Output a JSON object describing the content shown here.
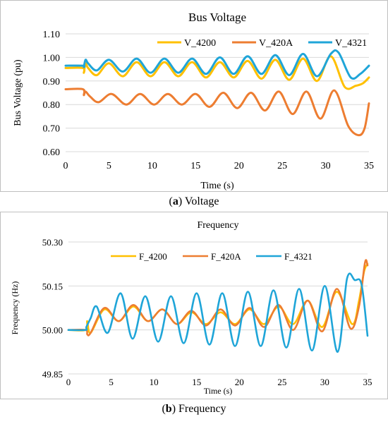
{
  "captions": [
    {
      "letter": "a",
      "text": "Voltage"
    },
    {
      "letter": "b",
      "text": "Frequency"
    }
  ],
  "chart_data": [
    {
      "type": "line",
      "title": "Bus Voltage",
      "xlabel": "Time (s)",
      "ylabel": "Bus Voltage (pu)",
      "xlim": [
        0,
        35
      ],
      "ylim": [
        0.6,
        1.1
      ],
      "xticks": [
        "0",
        "5",
        "10",
        "15",
        "20",
        "25",
        "30",
        "35"
      ],
      "yticks": [
        "0.60",
        "0.70",
        "0.80",
        "0.90",
        "1.00",
        "1.10"
      ],
      "grid": "horizontal",
      "legend_position": "top-right",
      "series": [
        {
          "name": "V_4200",
          "color": "#FFC000",
          "x": [
            0,
            2,
            2.1,
            2.3,
            2.6,
            3.6,
            5.0,
            6.6,
            8.2,
            9.8,
            11.4,
            13.0,
            14.6,
            16.2,
            17.8,
            19.4,
            21.0,
            22.6,
            24.2,
            25.8,
            27.4,
            29.0,
            30.6,
            32.2,
            33.5,
            34.3,
            35
          ],
          "y": [
            0.955,
            0.955,
            0.935,
            0.975,
            0.955,
            0.925,
            0.975,
            0.92,
            0.98,
            0.92,
            0.98,
            0.92,
            0.98,
            0.915,
            0.98,
            0.915,
            0.985,
            0.91,
            0.99,
            0.905,
            0.995,
            0.9,
            1.005,
            0.875,
            0.88,
            0.89,
            0.915
          ]
        },
        {
          "name": "V_420A",
          "color": "#ED7D31",
          "x": [
            0,
            2,
            2.1,
            2.3,
            2.8,
            3.8,
            5.3,
            7.0,
            8.6,
            10.2,
            11.8,
            13.4,
            15.0,
            16.6,
            18.2,
            19.8,
            21.4,
            23.0,
            24.6,
            26.2,
            27.8,
            29.4,
            31.0,
            32.6,
            33.8,
            34.5,
            35
          ],
          "y": [
            0.865,
            0.865,
            0.84,
            0.855,
            0.835,
            0.81,
            0.845,
            0.8,
            0.845,
            0.8,
            0.845,
            0.8,
            0.845,
            0.79,
            0.85,
            0.785,
            0.85,
            0.775,
            0.855,
            0.76,
            0.855,
            0.74,
            0.86,
            0.71,
            0.67,
            0.7,
            0.805
          ]
        },
        {
          "name": "V_4321",
          "color": "#1FA5D8",
          "x": [
            0,
            2,
            2.1,
            2.3,
            2.6,
            3.6,
            5.0,
            6.6,
            8.2,
            9.8,
            11.4,
            13.0,
            14.6,
            16.2,
            17.8,
            19.4,
            21.0,
            22.6,
            24.2,
            25.8,
            27.4,
            29.0,
            30.6,
            31.5,
            32.9,
            34.0,
            35
          ],
          "y": [
            0.965,
            0.965,
            0.96,
            0.99,
            0.975,
            0.945,
            0.99,
            0.94,
            0.995,
            0.935,
            0.995,
            0.935,
            0.995,
            0.93,
            1.0,
            0.93,
            1.005,
            0.93,
            1.01,
            0.925,
            1.015,
            0.92,
            1.015,
            1.02,
            0.915,
            0.93,
            0.965
          ]
        }
      ]
    },
    {
      "type": "line",
      "title": "Frequency",
      "xlabel": "Time (s)",
      "ylabel": "Frequency (Hz)",
      "xlim": [
        0,
        35
      ],
      "ylim": [
        49.85,
        50.3
      ],
      "xticks": [
        "0",
        "5",
        "10",
        "15",
        "20",
        "25",
        "30",
        "35"
      ],
      "yticks": [
        "49.85",
        "50.00",
        "50.15",
        "50.30"
      ],
      "grid": "horizontal",
      "legend_position": "top",
      "series": [
        {
          "name": "F_4200",
          "color": "#FFC000",
          "x": [
            0,
            2,
            2.2,
            2.6,
            4.2,
            5.9,
            7.6,
            9.3,
            11.0,
            12.7,
            14.4,
            16.1,
            17.8,
            19.5,
            21.2,
            22.9,
            24.6,
            26.3,
            28.0,
            29.7,
            31.4,
            33.2,
            34.0,
            34.6,
            35
          ],
          "y": [
            50.0,
            50.0,
            50.03,
            49.99,
            50.07,
            50.03,
            50.08,
            50.03,
            50.07,
            50.02,
            50.06,
            50.02,
            50.06,
            50.02,
            50.07,
            50.02,
            50.08,
            50.02,
            50.1,
            50.01,
            50.13,
            50.02,
            50.1,
            50.2,
            50.225
          ]
        },
        {
          "name": "F_420A",
          "color": "#ED7D31",
          "x": [
            0,
            2,
            2.2,
            2.6,
            4.2,
            5.9,
            7.6,
            9.3,
            11.0,
            12.7,
            14.4,
            16.1,
            17.8,
            19.5,
            21.2,
            22.9,
            24.6,
            26.3,
            28.0,
            29.7,
            31.4,
            33.0,
            34.0,
            34.7,
            35
          ],
          "y": [
            50.0,
            50.0,
            49.985,
            49.99,
            50.075,
            50.03,
            50.085,
            50.03,
            50.07,
            50.02,
            50.065,
            50.015,
            50.07,
            50.015,
            50.075,
            50.01,
            50.085,
            50.0,
            50.1,
            49.995,
            50.14,
            50.005,
            50.08,
            50.23,
            50.22
          ]
        },
        {
          "name": "F_4321",
          "color": "#1FA5D8",
          "x": [
            0,
            2,
            2.1,
            2.6,
            3.3,
            4.6,
            6.1,
            7.5,
            9.0,
            10.5,
            12.0,
            13.5,
            15.0,
            16.5,
            18.0,
            19.5,
            21.0,
            22.5,
            24.0,
            25.5,
            27.0,
            28.5,
            30.0,
            31.5,
            32.6,
            33.5,
            34.3,
            35
          ],
          "y": [
            50.0,
            50.0,
            50.01,
            50.04,
            50.08,
            49.99,
            50.125,
            49.97,
            50.115,
            49.96,
            50.115,
            49.955,
            50.125,
            49.95,
            50.125,
            49.945,
            50.13,
            49.945,
            50.135,
            49.94,
            50.14,
            49.93,
            50.15,
            49.925,
            50.175,
            50.17,
            50.155,
            49.98
          ]
        }
      ]
    }
  ]
}
